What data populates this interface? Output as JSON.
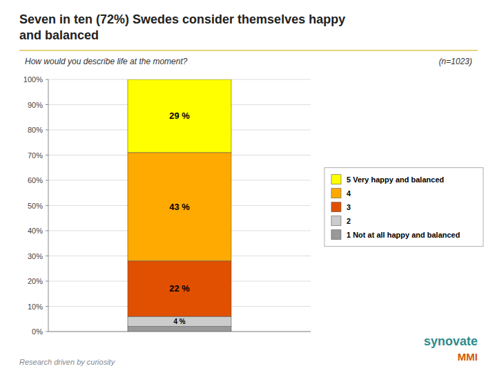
{
  "chart_data": {
    "type": "bar",
    "stacked": true,
    "title": "Seven in ten (72%) Swedes consider themselves happy\nand balanced",
    "subtitle": "How would you describe life at the moment?",
    "annotations": [
      "(n=1023)",
      "Research driven by curiosity",
      "synovate",
      "MMI"
    ],
    "categories": [
      null
    ],
    "series": [
      {
        "name": "1 Not at all happy and balanced",
        "color": "#999999",
        "values": [
          2
        ],
        "value_labels": [
          null
        ]
      },
      {
        "name": "2",
        "color": "#CCCCCC",
        "values": [
          4
        ],
        "value_labels": [
          "4 %"
        ]
      },
      {
        "name": "3",
        "color": "#E05000",
        "values": [
          22
        ],
        "value_labels": [
          "22 %"
        ]
      },
      {
        "name": "4",
        "color": "#FFAA00",
        "values": [
          43
        ],
        "value_labels": [
          "43 %"
        ]
      },
      {
        "name": "5 Very happy and balanced",
        "color": "#FFFF00",
        "values": [
          29
        ],
        "value_labels": [
          "29 %"
        ]
      }
    ],
    "ylim": [
      0,
      100
    ],
    "yticks": [
      {
        "value": 0,
        "label": "0%"
      },
      {
        "value": 10,
        "label": "10%"
      },
      {
        "value": 20,
        "label": "20%"
      },
      {
        "value": 30,
        "label": "30%"
      },
      {
        "value": 40,
        "label": "40%"
      },
      {
        "value": 50,
        "label": "50%"
      },
      {
        "value": 60,
        "label": "60%"
      },
      {
        "value": 70,
        "label": "70%"
      },
      {
        "value": 80,
        "label": "80%"
      },
      {
        "value": 90,
        "label": "90%"
      },
      {
        "value": 100,
        "label": "100%"
      }
    ],
    "grid": true,
    "data_labels": true,
    "legend": "right",
    "tick_labels": "y"
  }
}
